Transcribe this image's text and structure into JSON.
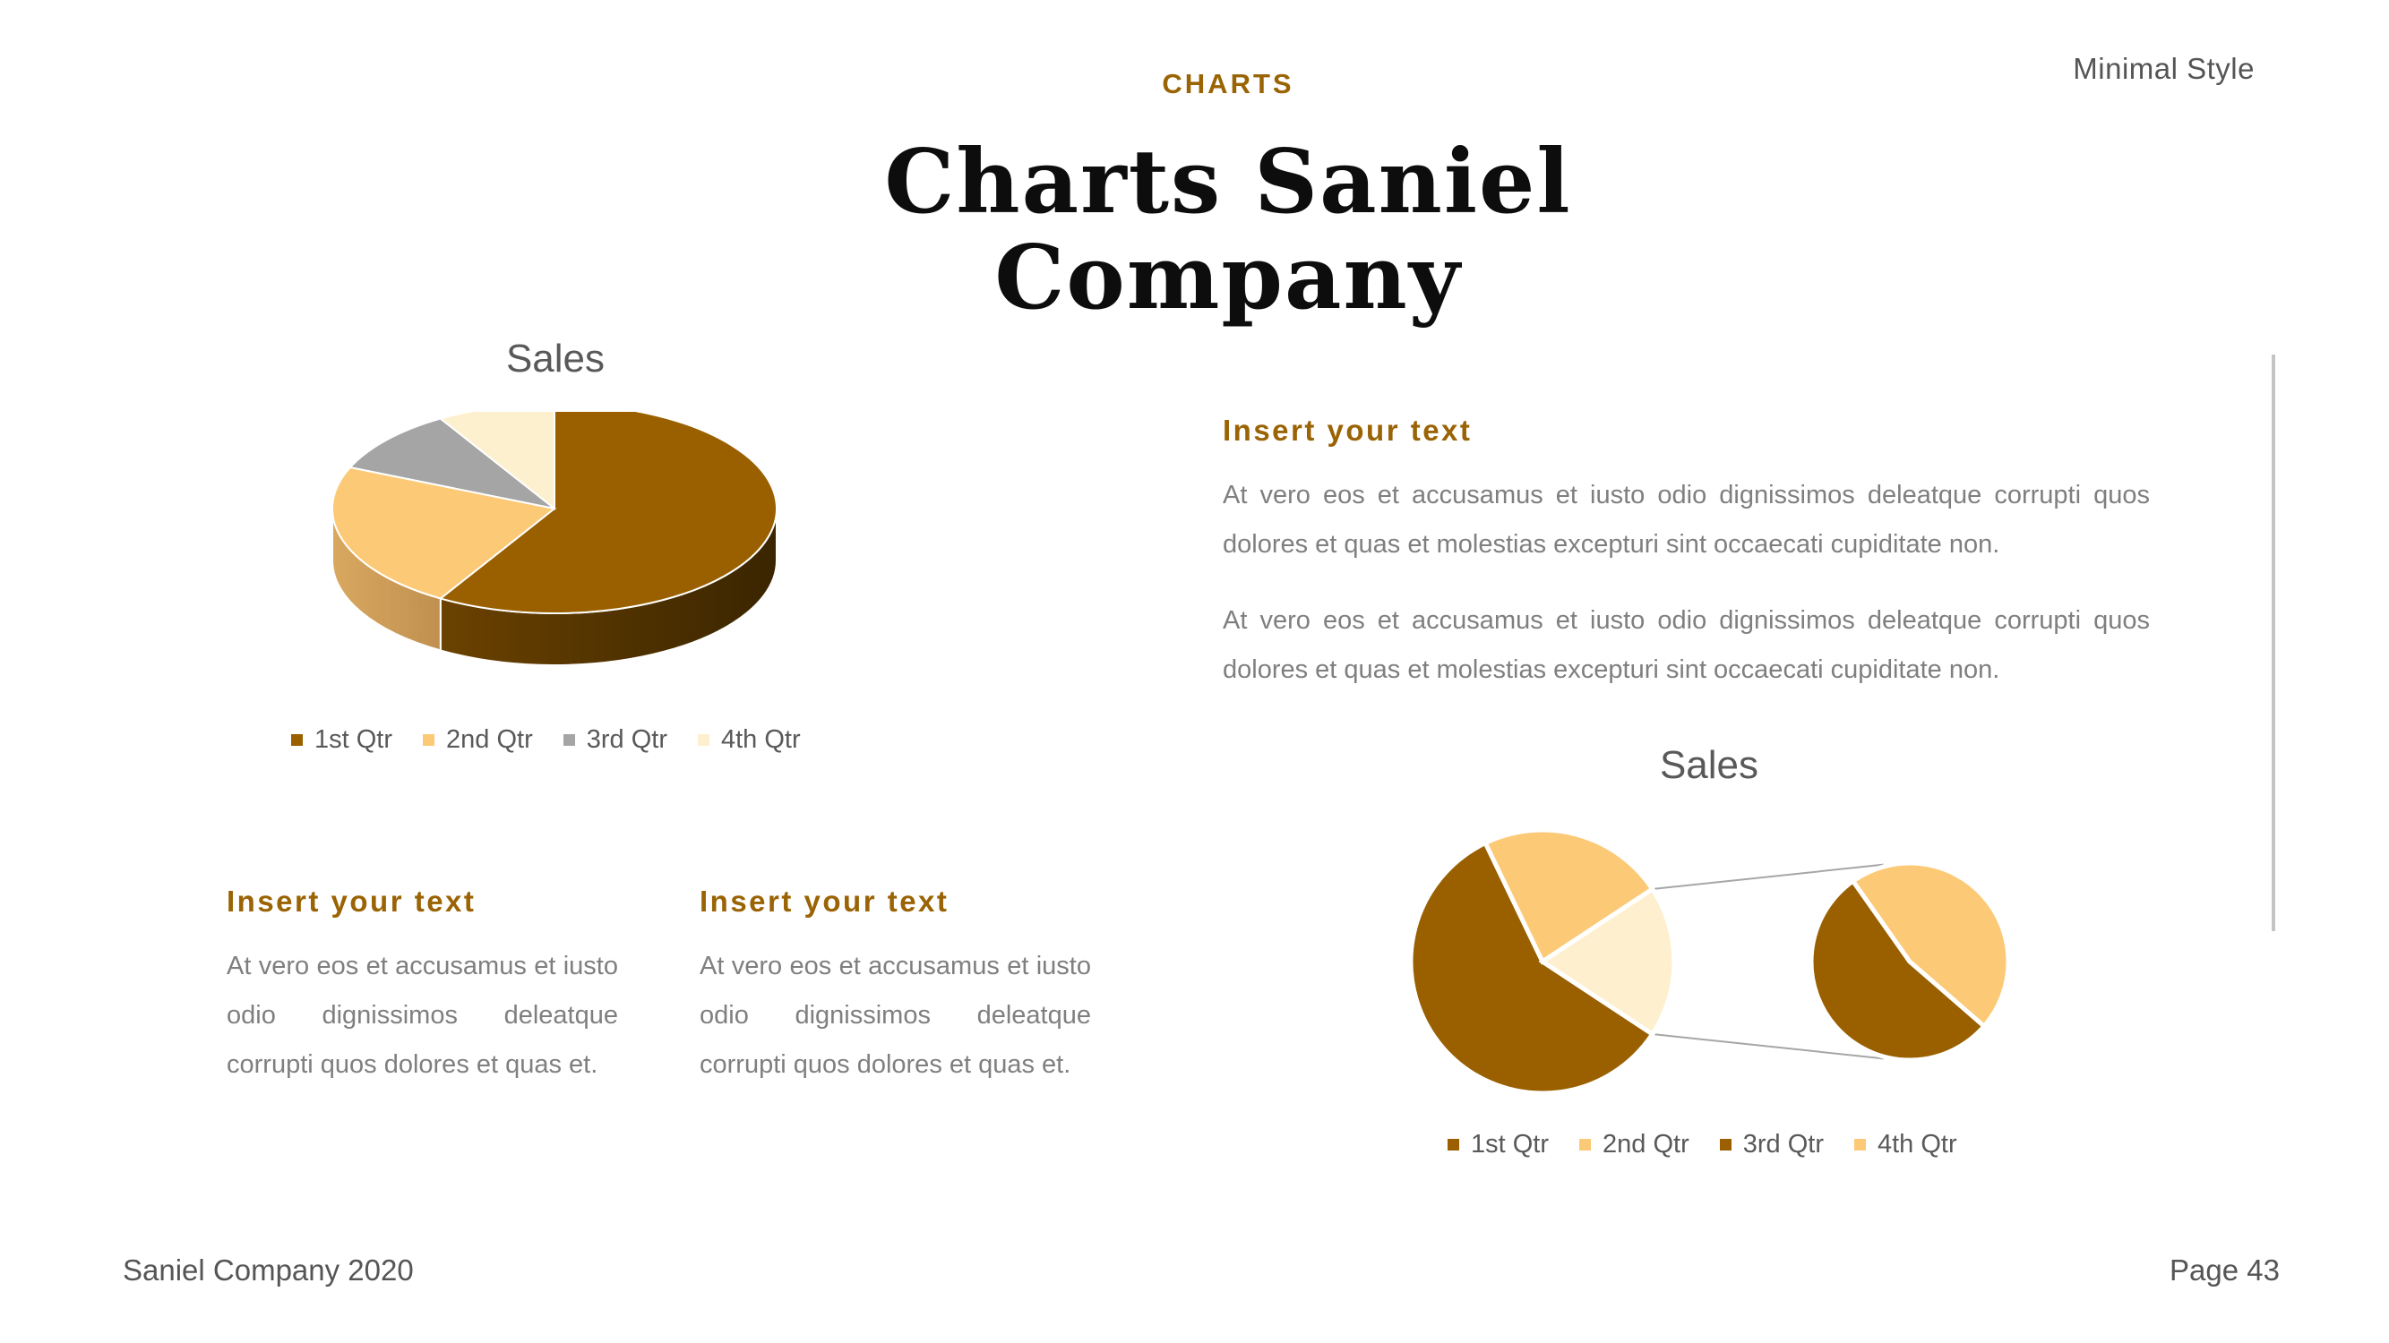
{
  "header": {
    "kicker": "CHARTS",
    "title_line1": "Charts Saniel",
    "title_line2": "Company",
    "tagline": "Minimal Style"
  },
  "colors": {
    "accent": "#9A6304",
    "title": "#0D0D0D",
    "body_text": "#7F7F7F",
    "chart_text": "#595959",
    "divider": "#C4C4C4"
  },
  "text_blocks": {
    "right": {
      "heading": "Insert your text",
      "paragraph1": "At vero eos et accusamus et iusto odio dignissimos deleatque corrupti quos dolores et quas et molestias excepturi sint occaecati cupiditate non.",
      "paragraph2": "At vero eos et accusamus et iusto odio dignissimos deleatque corrupti quos dolores et quas et molestias excepturi sint occaecati cupiditate non."
    },
    "bottom_left_1": {
      "heading": "Insert your text",
      "paragraph": "At vero eos et accusamus et iusto odio dignissimos deleatque corrupti quos dolores et quas et."
    },
    "bottom_left_2": {
      "heading": "Insert your text",
      "paragraph": "At vero eos et accusamus et iusto odio dignissimos deleatque corrupti quos dolores et quas et."
    }
  },
  "footer": {
    "company": "Saniel Company 2020",
    "page": "Page 43"
  },
  "chart_data": [
    {
      "type": "pie",
      "variant": "3d-pie",
      "title": "Sales",
      "categories": [
        "1st Qtr",
        "2nd Qtr",
        "3rd Qtr",
        "4th Qtr"
      ],
      "values": [
        8.2,
        3.2,
        1.4,
        1.2
      ],
      "colors": [
        "#9A6000",
        "#FCC976",
        "#A5A5A5",
        "#FDF0CE"
      ],
      "legend_position": "bottom"
    },
    {
      "type": "pie",
      "variant": "pie-of-pie",
      "title": "Sales",
      "categories": [
        "1st Qtr",
        "2nd Qtr",
        "3rd Qtr",
        "4th Qtr"
      ],
      "values": [
        8.2,
        3.2,
        1.4,
        1.2
      ],
      "colors": [
        "#9A6000",
        "#FCC976",
        "#9A6000",
        "#FCC976"
      ],
      "other_color": "#FEF0CF",
      "secondary_categories": [
        "3rd Qtr",
        "4th Qtr"
      ],
      "legend_position": "bottom"
    }
  ]
}
